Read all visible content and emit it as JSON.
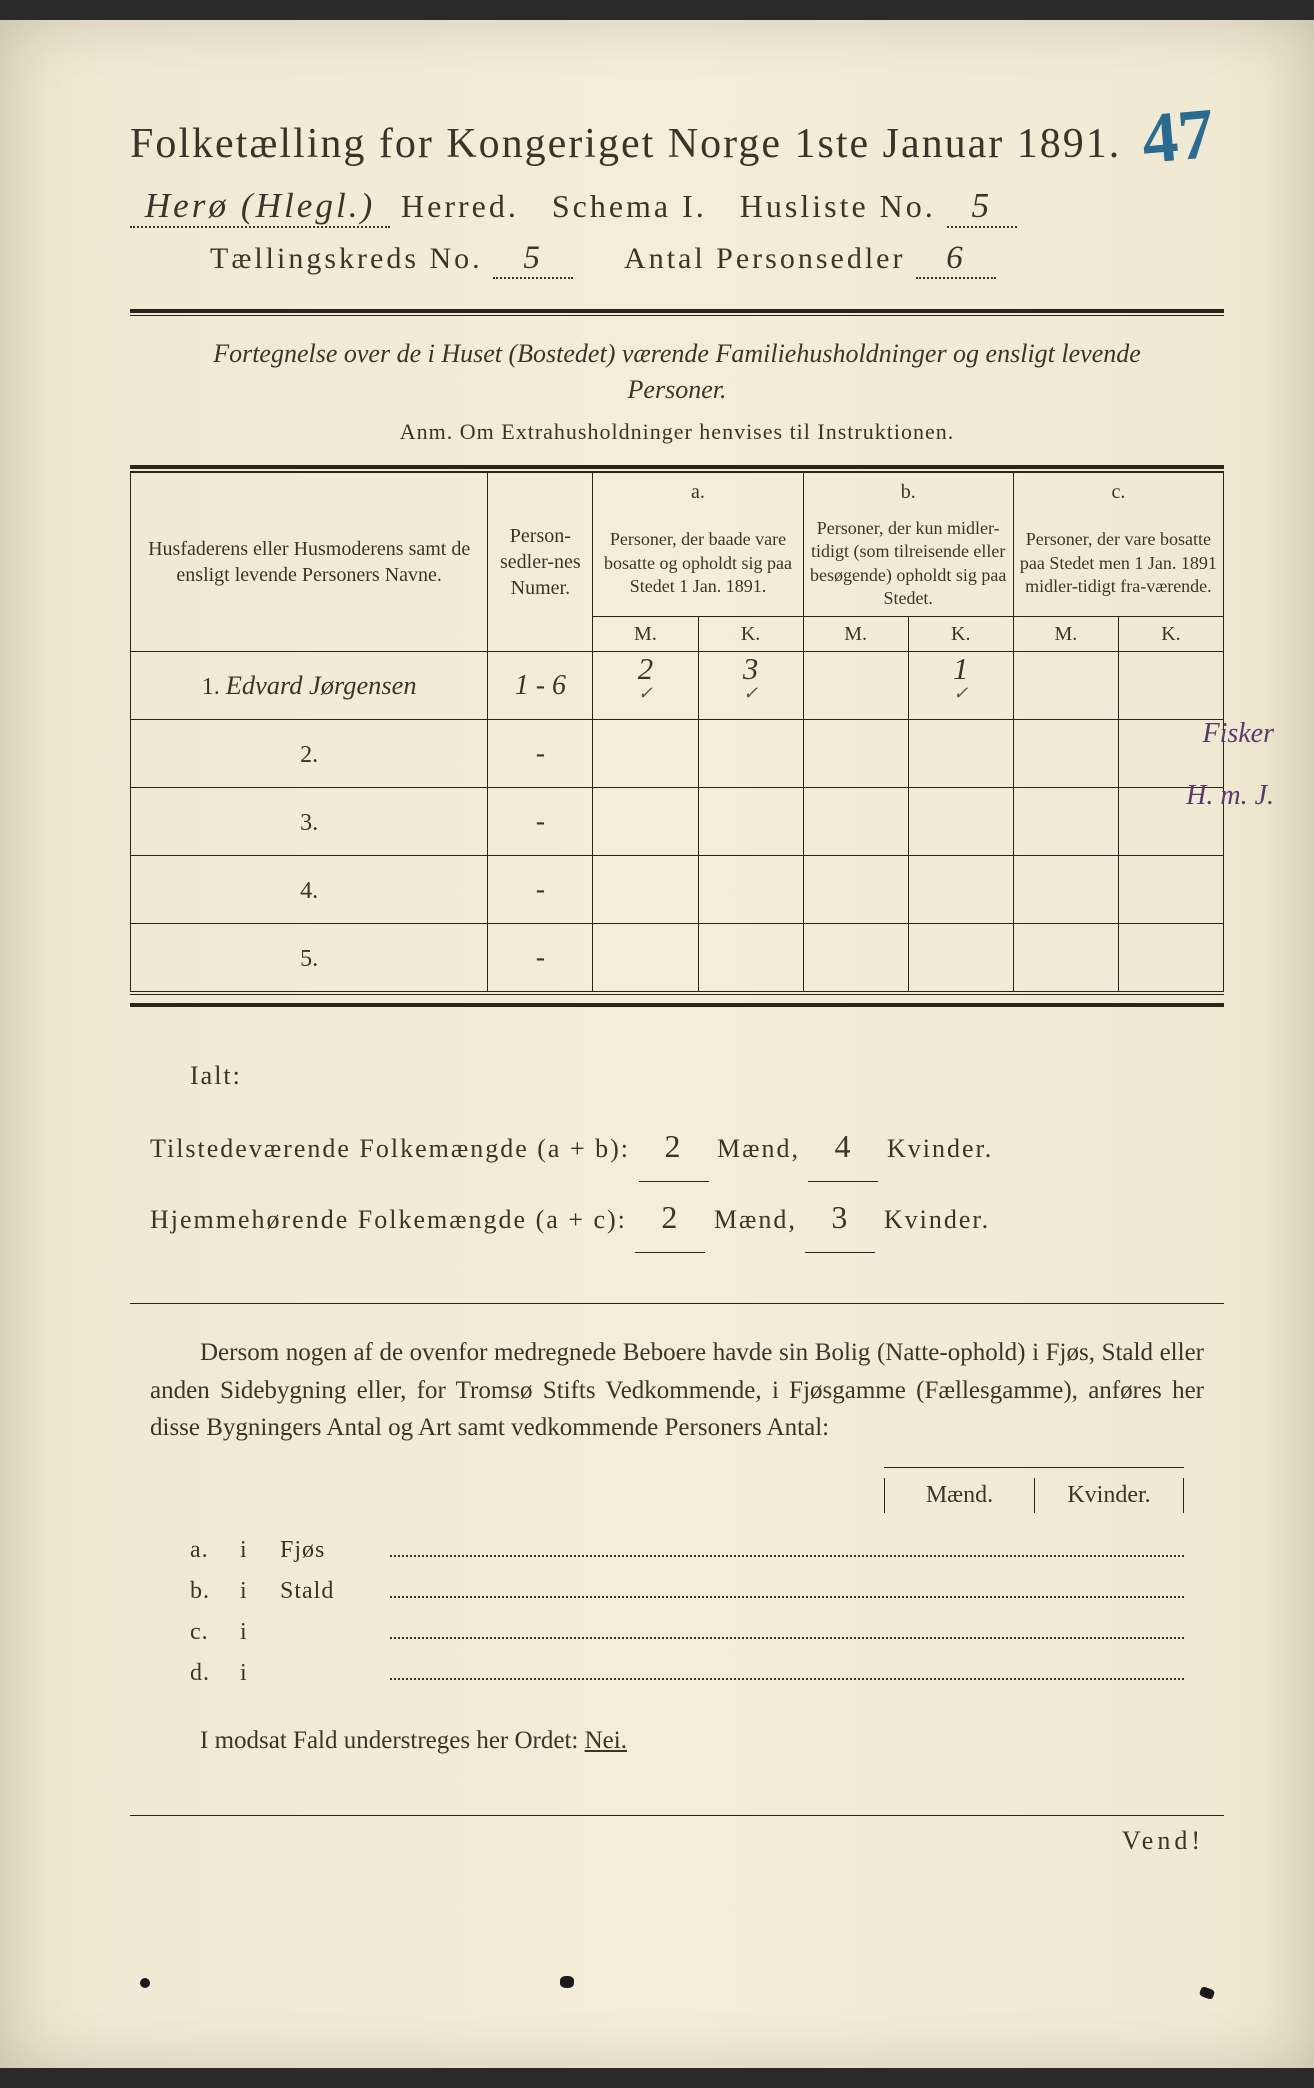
{
  "page_corner_number": "47",
  "title": "Folketælling for Kongeriget Norge 1ste Januar 1891.",
  "header": {
    "herred_hw": "Herø (Hlegl.)",
    "herred_label": "Herred.",
    "schema_label": "Schema I.",
    "husliste_label": "Husliste No.",
    "husliste_no": "5",
    "kreds_label": "Tællingskreds No.",
    "kreds_no": "5",
    "antal_label": "Antal Personsedler",
    "antal_no": "6"
  },
  "section_desc": "Fortegnelse over de i Huset (Bostedet) værende Familiehusholdninger og ensligt levende Personer.",
  "anm": "Anm.  Om Extrahusholdninger henvises til Instruktionen.",
  "table": {
    "col_name_header": "Husfaderens eller Husmoderens samt de ensligt levende Personers Navne.",
    "col_num_header": "Person-sedler-nes Numer.",
    "col_a_top": "a.",
    "col_a_desc": "Personer, der baade vare bosatte og opholdt sig paa Stedet 1 Jan. 1891.",
    "col_b_top": "b.",
    "col_b_desc": "Personer, der kun midler-tidigt (som tilreisende eller besøgende) opholdt sig paa Stedet.",
    "col_c_top": "c.",
    "col_c_desc": "Personer, der vare bosatte paa Stedet men 1 Jan. 1891 midler-tidigt fra-værende.",
    "m": "M.",
    "k": "K.",
    "rows": [
      {
        "no": "1.",
        "name": "Edvard Jørgensen",
        "num": "1 - 6",
        "aM": "2",
        "aK": "3",
        "bM": "",
        "bK": "1",
        "cM": "",
        "cK": ""
      },
      {
        "no": "2.",
        "name": "",
        "num": "-",
        "aM": "",
        "aK": "",
        "bM": "",
        "bK": "",
        "cM": "",
        "cK": ""
      },
      {
        "no": "3.",
        "name": "",
        "num": "-",
        "aM": "",
        "aK": "",
        "bM": "",
        "bK": "",
        "cM": "",
        "cK": ""
      },
      {
        "no": "4.",
        "name": "",
        "num": "-",
        "aM": "",
        "aK": "",
        "bM": "",
        "bK": "",
        "cM": "",
        "cK": ""
      },
      {
        "no": "5.",
        "name": "",
        "num": "-",
        "aM": "",
        "aK": "",
        "bM": "",
        "bK": "",
        "cM": "",
        "cK": ""
      }
    ],
    "margin_note_top": "Fisker",
    "margin_note_row1": "H. m. J."
  },
  "totals": {
    "ialt": "Ialt:",
    "line1_label": "Tilstedeværende Folkemængde (a + b):",
    "line1_m": "2",
    "line1_k": "4",
    "line2_label": "Hjemmehørende Folkemængde (a + c):",
    "line2_m": "2",
    "line2_k": "3",
    "maend": "Mænd,",
    "kvinder": "Kvinder."
  },
  "paragraph": "Dersom nogen af de ovenfor medregnede Beboere havde sin Bolig (Natte-ophold) i Fjøs, Stald eller anden Sidebygning eller, for Tromsø Stifts Vedkommende, i Fjøsgamme (Fællesgamme), anføres her disse Bygningers Antal og Art samt vedkommende Personers Antal:",
  "mk_header": {
    "m": "Mænd.",
    "k": "Kvinder."
  },
  "buildings": [
    {
      "key": "a.",
      "i": "i",
      "name": "Fjøs"
    },
    {
      "key": "b.",
      "i": "i",
      "name": "Stald"
    },
    {
      "key": "c.",
      "i": "i",
      "name": ""
    },
    {
      "key": "d.",
      "i": "i",
      "name": ""
    }
  ],
  "nei_line_pre": "I modsat Fald understreges her Ordet: ",
  "nei_word": "Nei.",
  "vend": "Vend!"
}
